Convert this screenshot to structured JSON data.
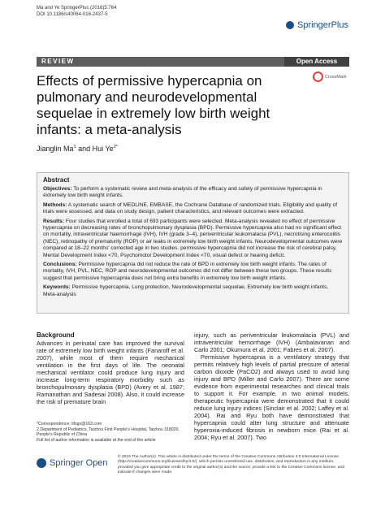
{
  "header": {
    "citation": "Ma and Ye SpringerPlus (2016)5:764",
    "doi": "DOI 10.1186/s40064-016-2437-5",
    "logo": "SpringerPlus"
  },
  "banner": {
    "type": "REVIEW",
    "access": "Open Access"
  },
  "title": "Effects of permissive hypercapnia on pulmonary and neurodevelopmental sequelae in extremely low birth weight infants: a meta-analysis",
  "crossmark": "CrossMark",
  "authors": {
    "list": [
      {
        "name": "Jianglin Ma",
        "affiliation": "1"
      },
      {
        "name": "Hui Ye",
        "affiliation": "2*"
      }
    ],
    "connector": "and"
  },
  "abstract": {
    "heading": "Abstract",
    "sections": [
      {
        "label": "Objectives:",
        "text": "To perform a systematic review and meta-analysis of the efficacy and safety of permissive hypercapnia in extremely low birth weight infants."
      },
      {
        "label": "Methods:",
        "text": "A systematic search of MEDLINE, EMBASE, the Cochrane Database of randomized trials. Eligibility and quality of trials were assessed, and data on study design, patient characteristics, and relevant outcomes were extracted."
      },
      {
        "label": "Results:",
        "text": "Four studies that enrolled a total of 693 participants were selected. Meta-analysis revealed no effect of permissive hypercapnia on decreasing rates of bronchopulmonary dysplasia (BPD). Permissive hypercapnia also had no significant effect on mortality, intraventricular haemorrhage (IVH), IVH (grade 3–4), periventricular leukomalacia (PVL), necrotising enterocolitis (NEC), retinopathy of prematurity (ROP) or air leaks in extremely low birth weight infants. Neurodevelopmental outcomes were compared at 18–22 months' corrected age in two studies. permissive hypercapnia did not increase the risk of cerebral palsy, Mental Development Index <70, Psychomotor Development Index <70, visual defect or hearing deficit."
      },
      {
        "label": "Conclusions:",
        "text": "Permissive hypercapnia did not reduce the rate of BPD in extremely low birth weight infants. The rates of mortality, IVH, PVL, NEC, ROP and neurodevelopmental outcomes did not differ between these two groups. These results suggest that permissive hypercapnia does not bring extra benefits in extremely low birth weight infants."
      },
      {
        "label": "Keywords:",
        "text": "Permissive hypercapnia, Lung protection, Neurodevelopmental sequelae, Extremely low birth weight infants, Meta-analysis"
      }
    ]
  },
  "body": {
    "heading": "Background",
    "left": [
      "Advances in perinatal care has improved the survival rate of extremely low birth weight infants (Fanaroff et al. 2007), while most of them require mechanical ventilation in the first days of life. The neonatal mechanical ventilator could produce lung injury and increase long-term respiratory morbidity such as bronchopulmonary dysplasia (BPD) (Avery et al. 1987; Ramanathan and Sadesai 2008). Also, it could increase the risk of premature brain"
    ],
    "right": [
      "injury, such as periventricular leukomalacia (PVL) and intraventricular hemorrhage (IVH) (Ambalavanan and Carlo 2001; Okumura et al. 2001; Fabres et al. 2007).",
      "Permissive hypercapnia is a ventilatory strategy that permits relatively high levels of partial pressure of arterial carbon dioxide (PaCO2) and always used to avoid lung injury and BPD (Miller and Carlo 2007). There are some evidence from experimental researches and clinical trials to support it. For example, in two animal models, therapeutic hypercapnia were demonstrated that it could reduce lung injury indices (Sinclair et al. 2002; Laffey et al. 2004). Rai and Ryu both have demonstrated that hypercapnia could alter lung structure and attenuate hyperoxia-induced fibrosis in newborn mice (Rai et al. 2004; Ryu et al. 2007). Two"
    ]
  },
  "footnotes": [
    "*Correspondence: lifsgx@163.com",
    "2 Department of Pediatrics, Taizhou First People's Hospital, Taizhou 318020, People's Republic of China",
    "Full list of author information is available at the end of the article"
  ],
  "footer": {
    "logo": "Springer Open",
    "license": "© 2016 The Author(s). This article is distributed under the terms of the Creative Commons Attribution 4.0 International License (http://creativecommons.org/licenses/by/4.0/), which permits unrestricted use, distribution, and reproduction in any medium, provided you give appropriate credit to the original author(s) and the source, provide a link to the Creative Commons license, and indicate if changes were made."
  }
}
